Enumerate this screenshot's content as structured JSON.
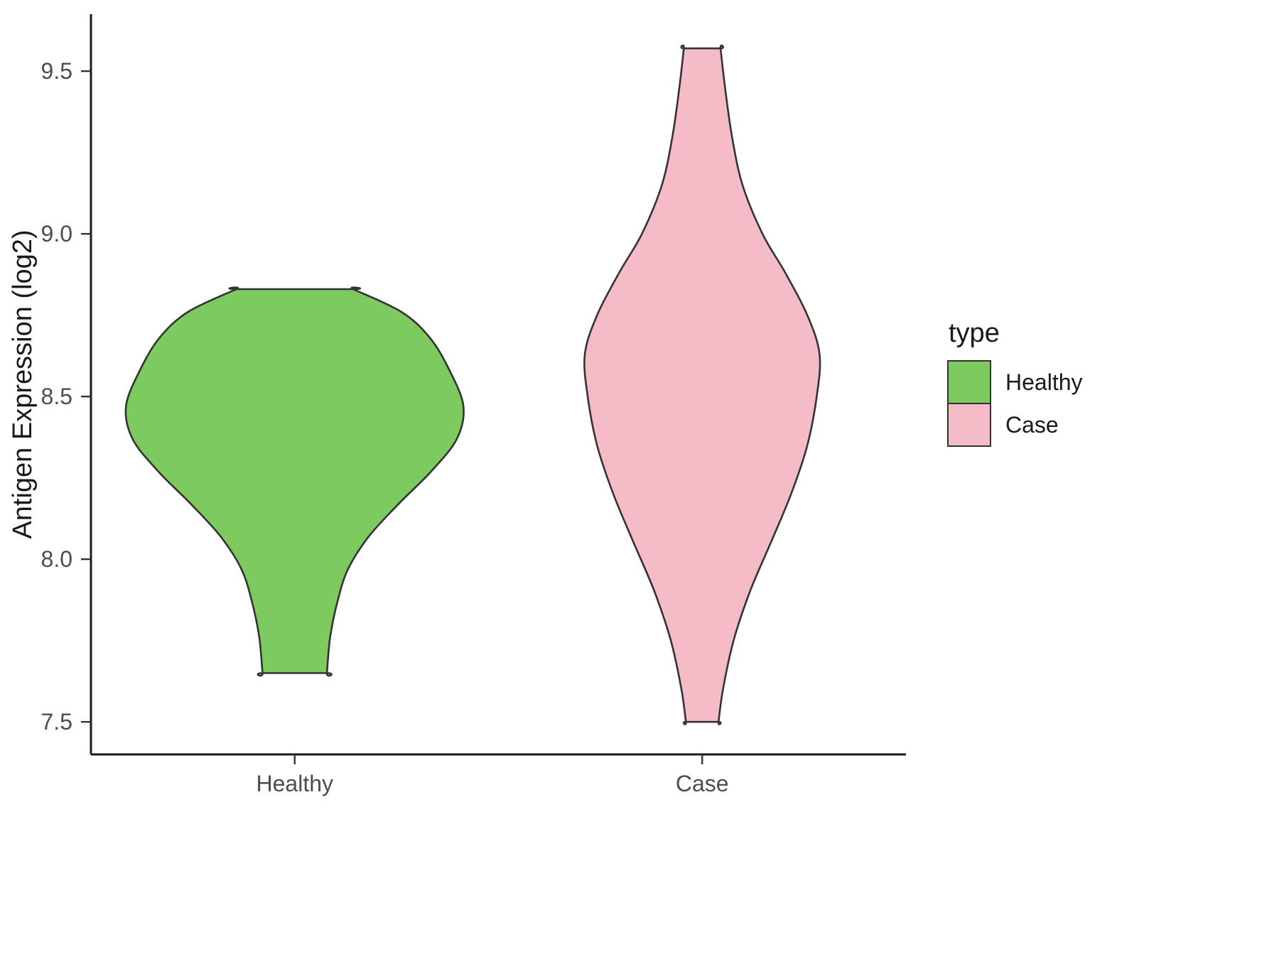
{
  "chart_data": {
    "type": "violin",
    "title": "",
    "xlabel": "",
    "ylabel": "Antigen Expression (log2)",
    "x_categories": [
      "Healthy",
      "Case"
    ],
    "y_ticks": [
      {
        "label": "7.5",
        "value": 7.5
      },
      {
        "label": "8.0",
        "value": 8.0
      },
      {
        "label": "8.5",
        "value": 8.5
      },
      {
        "label": "9.0",
        "value": 9.0
      },
      {
        "label": "9.5",
        "value": 9.5
      }
    ],
    "ylim": [
      7.4,
      9.675
    ],
    "grid": false,
    "legend": {
      "title": "type",
      "position": "right",
      "entries": [
        {
          "label": "Healthy",
          "color": "#7dcb5e"
        },
        {
          "label": "Case",
          "color": "#f5bcc8"
        }
      ]
    },
    "violins": [
      {
        "name": "Healthy",
        "fill": "#7dcb5e",
        "outline": "#333333",
        "y_min": 7.65,
        "y_max": 8.83,
        "flat_top": true,
        "flat_bottom": true,
        "profile": [
          [
            8.83,
            0.143
          ],
          [
            8.76,
            0.262
          ],
          [
            8.68,
            0.332
          ],
          [
            8.58,
            0.38
          ],
          [
            8.47,
            0.414
          ],
          [
            8.37,
            0.398
          ],
          [
            8.27,
            0.335
          ],
          [
            8.17,
            0.255
          ],
          [
            8.07,
            0.182
          ],
          [
            7.97,
            0.131
          ],
          [
            7.87,
            0.105
          ],
          [
            7.76,
            0.087
          ],
          [
            7.65,
            0.079
          ]
        ]
      },
      {
        "name": "Case",
        "fill": "#f5bcc8",
        "outline": "#333333",
        "y_min": 7.5,
        "y_max": 9.57,
        "flat_top": true,
        "flat_bottom": true,
        "profile": [
          [
            9.57,
            0.045
          ],
          [
            9.45,
            0.056
          ],
          [
            9.3,
            0.073
          ],
          [
            9.15,
            0.099
          ],
          [
            9.0,
            0.148
          ],
          [
            8.88,
            0.204
          ],
          [
            8.75,
            0.258
          ],
          [
            8.63,
            0.288
          ],
          [
            8.5,
            0.281
          ],
          [
            8.35,
            0.258
          ],
          [
            8.2,
            0.218
          ],
          [
            8.05,
            0.168
          ],
          [
            7.9,
            0.117
          ],
          [
            7.75,
            0.077
          ],
          [
            7.6,
            0.051
          ],
          [
            7.5,
            0.04
          ]
        ]
      }
    ],
    "colors": {
      "axis_line": "#1a1a1a",
      "tick_mark": "#333333",
      "tick_label": "#4d4d4d",
      "axis_title": "#1a1a1a",
      "background": "#ffffff"
    }
  }
}
